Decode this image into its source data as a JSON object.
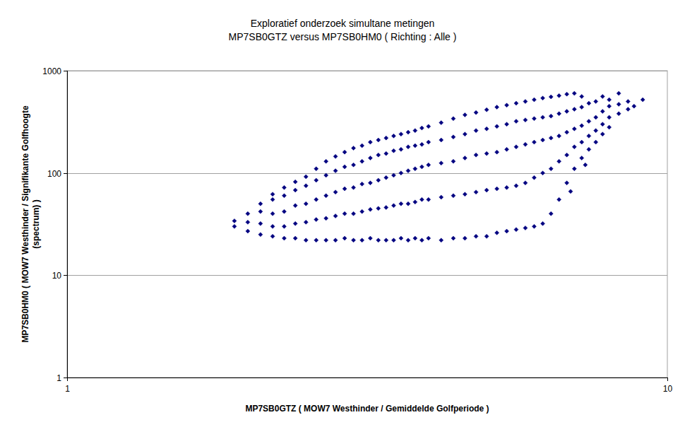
{
  "chart_data": {
    "type": "scatter",
    "title": "Exploratief onderzoek simultane metingen",
    "subtitle": "MP7SB0GTZ versus MP7SB0HM0 ( Richting : Alle )",
    "x_label": "MP7SB0GTZ ( MOW7 Westhinder / Gemiddelde Golfperiode )",
    "y_label": "MP7SB0HM0 ( MOW7 Westhinder / Signifikante Golfhoogte (spectrum) )",
    "log": true,
    "grid": true,
    "color": "#000080",
    "marker": "diamond",
    "xlim": [
      1,
      10
    ],
    "ylim": [
      1,
      1000
    ],
    "xticks": [
      1,
      10
    ],
    "yticks": [
      1,
      10,
      100,
      1000
    ],
    "x": [
      1.9,
      1.9,
      2.0,
      2.0,
      2.0,
      2.1,
      2.1,
      2.1,
      2.1,
      2.2,
      2.2,
      2.2,
      2.2,
      2.2,
      2.3,
      2.3,
      2.3,
      2.3,
      2.3,
      2.4,
      2.4,
      2.4,
      2.4,
      2.4,
      2.5,
      2.5,
      2.5,
      2.5,
      2.5,
      2.6,
      2.6,
      2.6,
      2.6,
      2.6,
      2.7,
      2.7,
      2.7,
      2.7,
      2.7,
      2.8,
      2.8,
      2.8,
      2.8,
      2.8,
      2.9,
      2.9,
      2.9,
      2.9,
      2.9,
      3.0,
      3.0,
      3.0,
      3.0,
      3.0,
      3.1,
      3.1,
      3.1,
      3.1,
      3.1,
      3.2,
      3.2,
      3.2,
      3.2,
      3.2,
      3.3,
      3.3,
      3.3,
      3.3,
      3.3,
      3.4,
      3.4,
      3.4,
      3.4,
      3.4,
      3.5,
      3.5,
      3.5,
      3.5,
      3.5,
      3.6,
      3.6,
      3.6,
      3.6,
      3.6,
      3.7,
      3.7,
      3.7,
      3.7,
      3.7,
      3.8,
      3.8,
      3.8,
      3.8,
      3.8,
      3.9,
      3.9,
      3.9,
      3.9,
      3.9,
      4.0,
      4.0,
      4.0,
      4.0,
      4.0,
      4.2,
      4.2,
      4.2,
      4.2,
      4.2,
      4.4,
      4.4,
      4.4,
      4.4,
      4.4,
      4.6,
      4.6,
      4.6,
      4.6,
      4.6,
      4.8,
      4.8,
      4.8,
      4.8,
      4.8,
      5.0,
      5.0,
      5.0,
      5.0,
      5.0,
      5.2,
      5.2,
      5.2,
      5.2,
      5.2,
      5.4,
      5.4,
      5.4,
      5.4,
      5.4,
      5.6,
      5.6,
      5.6,
      5.6,
      5.6,
      5.8,
      5.8,
      5.8,
      5.8,
      5.8,
      6.0,
      6.0,
      6.0,
      6.0,
      6.0,
      6.2,
      6.2,
      6.2,
      6.2,
      6.2,
      6.4,
      6.4,
      6.4,
      6.4,
      6.4,
      6.6,
      6.6,
      6.6,
      6.6,
      6.6,
      6.8,
      6.8,
      6.8,
      6.8,
      6.8,
      7.0,
      7.0,
      7.0,
      7.0,
      7.0,
      7.2,
      7.2,
      7.2,
      7.2,
      7.2,
      7.4,
      7.4,
      7.4,
      7.4,
      7.6,
      7.6,
      7.6,
      7.6,
      7.8,
      7.8,
      7.8,
      7.8,
      8.0,
      8.0,
      8.0,
      8.0,
      8.3,
      8.3,
      8.3,
      8.6,
      8.6,
      8.8,
      9.1,
      6.9,
      7.3
    ],
    "values": [
      30,
      34,
      27,
      33,
      40,
      25,
      32,
      42,
      50,
      24,
      30,
      40,
      55,
      62,
      23,
      30,
      42,
      60,
      72,
      23,
      32,
      48,
      68,
      82,
      22,
      33,
      50,
      75,
      92,
      22,
      35,
      55,
      85,
      110,
      22,
      36,
      60,
      95,
      130,
      22,
      38,
      65,
      105,
      145,
      23,
      40,
      70,
      115,
      160,
      22,
      40,
      72,
      120,
      175,
      22,
      42,
      78,
      130,
      185,
      23,
      44,
      80,
      140,
      200,
      22,
      45,
      85,
      150,
      210,
      22,
      46,
      90,
      155,
      220,
      22,
      48,
      95,
      165,
      230,
      23,
      50,
      100,
      170,
      240,
      22,
      50,
      105,
      180,
      250,
      23,
      52,
      110,
      185,
      260,
      22,
      55,
      115,
      190,
      275,
      23,
      55,
      120,
      200,
      285,
      22,
      58,
      125,
      210,
      310,
      23,
      60,
      130,
      225,
      340,
      23,
      62,
      140,
      240,
      370,
      24,
      65,
      150,
      260,
      390,
      24,
      68,
      155,
      270,
      415,
      26,
      70,
      160,
      285,
      440,
      27,
      72,
      170,
      300,
      460,
      28,
      75,
      180,
      320,
      480,
      29,
      80,
      190,
      330,
      500,
      30,
      90,
      200,
      340,
      520,
      32,
      100,
      210,
      350,
      540,
      40,
      110,
      220,
      360,
      555,
      55,
      130,
      230,
      380,
      570,
      80,
      150,
      250,
      400,
      590,
      110,
      180,
      270,
      420,
      600,
      140,
      200,
      290,
      440,
      560,
      170,
      230,
      320,
      480,
      200,
      260,
      350,
      500,
      240,
      300,
      400,
      560,
      280,
      350,
      450,
      520,
      380,
      470,
      600,
      420,
      500,
      450,
      520,
      66,
      120
    ]
  }
}
